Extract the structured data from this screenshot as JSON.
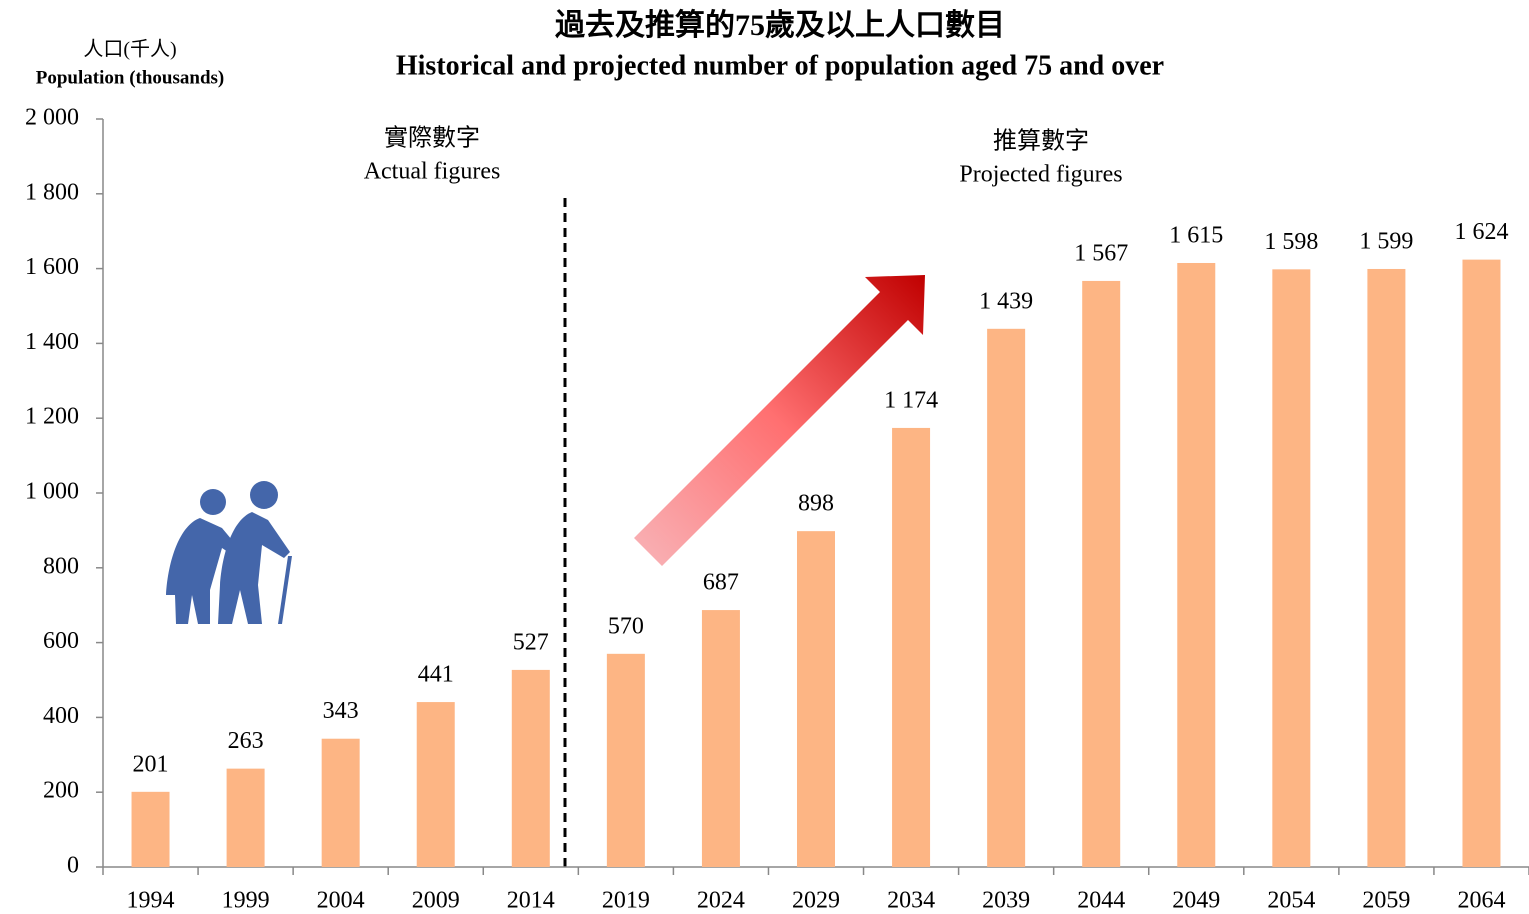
{
  "chart_data": {
    "type": "bar",
    "title": "過去及推算的75歲及以上人口數目",
    "subtitle": "Historical and projected number of population aged 75 and over",
    "y_label": "人口(千人)",
    "y_label_en": "Population (thousands)",
    "annotations": [
      "實際數字",
      "Actual figures",
      "推算數字",
      "Projected figures"
    ],
    "categories": [
      "1994",
      "1999",
      "2004",
      "2009",
      "2014",
      "2019",
      "2024",
      "2029",
      "2034",
      "2039",
      "2044",
      "2049",
      "2054",
      "2059",
      "2064"
    ],
    "values": [
      201,
      263,
      343,
      441,
      527,
      570,
      687,
      898,
      1174,
      1439,
      1567,
      1615,
      1598,
      1599,
      1624
    ],
    "value_labels": [
      "201",
      "263",
      "343",
      "441",
      "527",
      "570",
      "687",
      "898",
      "1 174",
      "1 439",
      "1 567",
      "1 615",
      "1 598",
      "1 599",
      "1 624"
    ],
    "color": "#fdb584",
    "ylim": [
      0,
      2000
    ],
    "yticks": [
      0,
      200,
      400,
      600,
      800,
      {
        "value": 1000,
        "label": "1 000"
      },
      {
        "value": 1200,
        "label": "1 200"
      },
      {
        "value": 1400,
        "label": "1 400"
      },
      {
        "value": 1600,
        "label": "1 600"
      },
      {
        "value": 1800,
        "label": "1 800"
      },
      {
        "value": 2000,
        "label": "2 000"
      }
    ],
    "grid": false
  }
}
